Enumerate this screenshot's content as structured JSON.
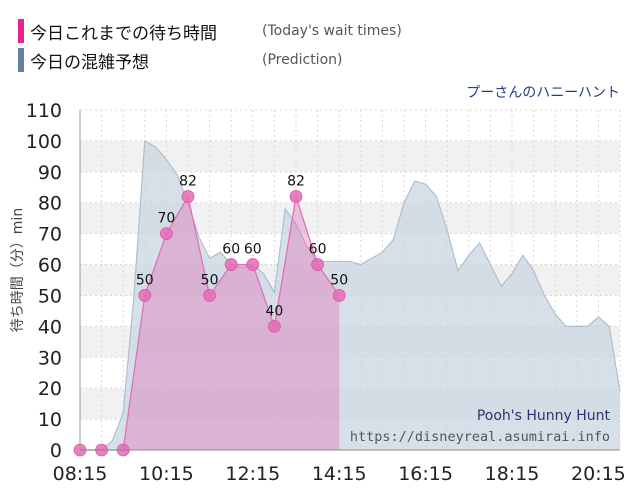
{
  "legend": {
    "today": {
      "label": "今日これまでの待ち時間",
      "note": "(Today's wait times)",
      "color": "#e8238f"
    },
    "prediction": {
      "label": "今日の混雑予想",
      "note": "(Prediction)",
      "color": "#6681a3"
    }
  },
  "chart_data": {
    "type": "area",
    "title": "プーさんのハニーハント",
    "subtitle": "Pooh's Hunny Hunt",
    "source": "https://disneyreal.asumirai.info",
    "ylabel": "待ち時間（分）min",
    "xlabel": "",
    "ylim": [
      0,
      110
    ],
    "yticks": [
      0,
      10,
      20,
      30,
      40,
      50,
      60,
      70,
      80,
      90,
      100,
      110
    ],
    "xlim": [
      "08:15",
      "20:45"
    ],
    "xticks": [
      "08:15",
      "10:15",
      "12:15",
      "14:15",
      "16:15",
      "18:15",
      "20:15"
    ],
    "grid": true,
    "series": [
      {
        "name": "Prediction",
        "color": "#c9d6e1",
        "points": [
          [
            "08:15",
            0
          ],
          [
            "08:45",
            0
          ],
          [
            "09:00",
            3
          ],
          [
            "09:15",
            12
          ],
          [
            "09:30",
            50
          ],
          [
            "09:45",
            100
          ],
          [
            "10:00",
            98
          ],
          [
            "10:15",
            94
          ],
          [
            "10:30",
            89
          ],
          [
            "10:45",
            80
          ],
          [
            "11:00",
            69
          ],
          [
            "11:15",
            62
          ],
          [
            "11:30",
            64
          ],
          [
            "11:45",
            60
          ],
          [
            "12:00",
            59
          ],
          [
            "12:15",
            60
          ],
          [
            "12:30",
            57
          ],
          [
            "12:45",
            51
          ],
          [
            "13:00",
            78
          ],
          [
            "13:15",
            73
          ],
          [
            "13:30",
            66
          ],
          [
            "13:45",
            61
          ],
          [
            "14:00",
            61
          ],
          [
            "14:15",
            61
          ],
          [
            "14:30",
            61
          ],
          [
            "14:45",
            60
          ],
          [
            "15:00",
            62
          ],
          [
            "15:15",
            64
          ],
          [
            "15:30",
            68
          ],
          [
            "15:45",
            80
          ],
          [
            "16:00",
            87
          ],
          [
            "16:15",
            86
          ],
          [
            "16:30",
            82
          ],
          [
            "16:45",
            71
          ],
          [
            "17:00",
            58
          ],
          [
            "17:15",
            63
          ],
          [
            "17:30",
            67
          ],
          [
            "17:45",
            60
          ],
          [
            "18:00",
            53
          ],
          [
            "18:15",
            57
          ],
          [
            "18:30",
            63
          ],
          [
            "18:45",
            58
          ],
          [
            "19:00",
            50
          ],
          [
            "19:15",
            44
          ],
          [
            "19:30",
            40
          ],
          [
            "19:45",
            40
          ],
          [
            "20:00",
            40
          ],
          [
            "20:15",
            43
          ],
          [
            "20:30",
            40
          ],
          [
            "20:45",
            19
          ]
        ]
      },
      {
        "name": "Today",
        "color": "#e36cb6",
        "points": [
          [
            "08:15",
            0
          ],
          [
            "08:45",
            0
          ],
          [
            "09:15",
            0
          ],
          [
            "09:45",
            50
          ],
          [
            "10:15",
            70
          ],
          [
            "10:45",
            82
          ],
          [
            "11:15",
            50
          ],
          [
            "11:45",
            60
          ],
          [
            "12:15",
            60
          ],
          [
            "12:45",
            40
          ],
          [
            "13:15",
            82
          ],
          [
            "13:45",
            60
          ],
          [
            "14:15",
            50
          ]
        ],
        "labels": [
          [
            "09:45",
            50
          ],
          [
            "10:15",
            70
          ],
          [
            "10:45",
            82
          ],
          [
            "11:15",
            50
          ],
          [
            "11:45",
            60
          ],
          [
            "12:15",
            60
          ],
          [
            "12:45",
            40
          ],
          [
            "13:15",
            82
          ],
          [
            "13:45",
            60
          ],
          [
            "14:15",
            50
          ]
        ]
      }
    ]
  }
}
